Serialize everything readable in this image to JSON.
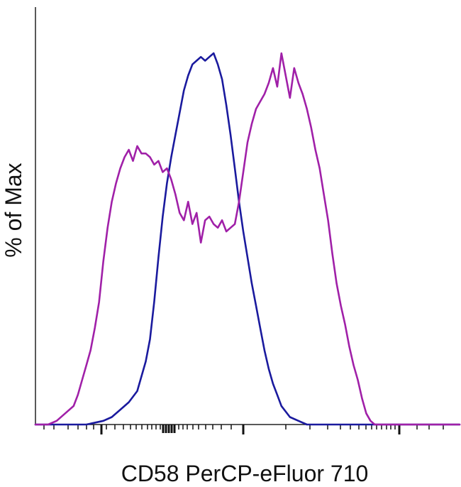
{
  "chart_data": {
    "type": "line",
    "xlabel": "CD58 PerCP-eFluor 710",
    "ylabel": "% of Max",
    "xscale": "log (biexponential, unlabeled ticks)",
    "xlim": [
      0,
      100
    ],
    "ylim": [
      0,
      100
    ],
    "grid": false,
    "legend": "none",
    "series": [
      {
        "color": "#1a1a9e",
        "x": [
          0,
          12,
          16,
          18,
          20,
          22,
          24,
          25,
          26,
          27,
          28,
          29,
          30,
          31,
          32,
          33,
          34,
          35,
          36,
          37,
          38,
          39,
          40,
          41,
          42,
          43,
          44,
          45,
          46,
          47,
          48,
          49,
          50,
          51,
          52,
          53,
          54,
          55,
          56,
          57,
          58,
          60,
          62,
          64,
          67,
          70,
          100
        ],
        "values": [
          0,
          0,
          1,
          2,
          4,
          6,
          9,
          13,
          17,
          23,
          33,
          45,
          56,
          65,
          72,
          78,
          84,
          90,
          94,
          97,
          98,
          99,
          98,
          99,
          100,
          97,
          93,
          86,
          78,
          69,
          60,
          52,
          45,
          38,
          32,
          26,
          20,
          15,
          11,
          8,
          5,
          2,
          1,
          0,
          0,
          0,
          0
        ]
      },
      {
        "color": "#a020a8",
        "x": [
          0,
          3,
          5,
          7,
          9,
          10,
          11,
          12,
          13,
          14,
          15,
          16,
          17,
          18,
          19,
          20,
          21,
          22,
          23,
          24,
          25,
          26,
          27,
          28,
          29,
          30,
          31,
          32,
          33,
          34,
          35,
          36,
          37,
          38,
          39,
          40,
          41,
          42,
          43,
          44,
          45,
          46,
          47,
          48,
          49,
          50,
          51,
          52,
          53,
          54,
          55,
          56,
          57,
          58,
          59,
          60,
          61,
          62,
          63,
          64,
          65,
          66,
          67,
          68,
          69,
          70,
          71,
          72,
          73,
          74,
          75,
          76,
          77,
          78,
          79,
          80,
          81,
          82,
          83,
          84,
          85,
          86,
          87,
          88,
          89,
          90,
          92,
          95,
          100
        ],
        "values": [
          0,
          0,
          1,
          3,
          5,
          8,
          12,
          16,
          20,
          26,
          33,
          44,
          53,
          60,
          65,
          69,
          72,
          74,
          71,
          75,
          73,
          73,
          72,
          70,
          71,
          68,
          69,
          66,
          62,
          57,
          55,
          60,
          54,
          57,
          49,
          55,
          56,
          54,
          53,
          55,
          52,
          53,
          54,
          60,
          68,
          76,
          81,
          85,
          87,
          89,
          92,
          96,
          91,
          100,
          94,
          88,
          96,
          92,
          89,
          85,
          80,
          74,
          69,
          62,
          55,
          46,
          38,
          32,
          27,
          21,
          16,
          12,
          7,
          3,
          1,
          0,
          0,
          0,
          0,
          0,
          0,
          0,
          0,
          0,
          0,
          0,
          0,
          0,
          0
        ]
      }
    ]
  }
}
